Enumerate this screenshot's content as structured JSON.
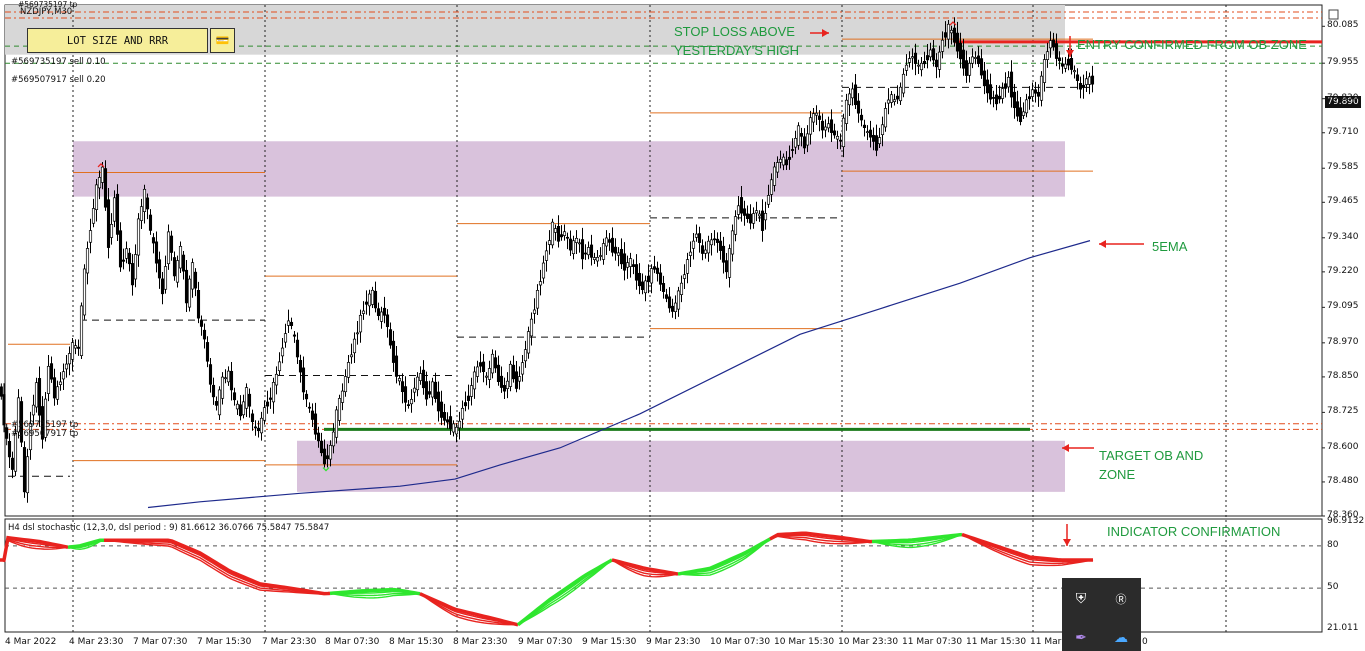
{
  "window": {
    "symbol_title": "NZDJPY,M30",
    "header_tickets": [
      "#569735197 tp",
      "#569507917 tp"
    ]
  },
  "panel": {
    "lot_button_label": "LOT SIZE AND RRR",
    "lot_icon": "card-icon"
  },
  "orders": [
    {
      "label": "#569735197 sell 0.10"
    },
    {
      "label": "#569507917 sell 0.20"
    }
  ],
  "lower_tickets": [
    "#569735197 tp",
    "#569507917 tp"
  ],
  "annotations": {
    "stop_loss": [
      "STOP LOSS ABOVE",
      "YESTERDAY'S HIGH"
    ],
    "entry": "ENTRY CONFIRMED FROM OB ZONE",
    "ema": "5EMA",
    "target": [
      "TARGET OB AND",
      "ZONE"
    ],
    "indicator": "INDICATOR CONFIRMATION"
  },
  "indicator_panel": {
    "caption": "H4 dsl stochastic (12,3,0, dsl period : 9) 81.6612 36.0766 75.5847 75.5847",
    "axis_labels": [
      "96.9132",
      "80",
      "50",
      "21.011"
    ]
  },
  "colors": {
    "bull": "#2ee62e",
    "bear": "#e8231f",
    "text_green": "#1f9a3e",
    "ob_zone": "#d9c2dc",
    "header_zone": "#d7d7d7",
    "ema": "#1e2a8c",
    "target_line": "#1a7a1a",
    "entry_line": "#e8231f"
  },
  "chart_data": {
    "type": "candlestick",
    "symbol": "NZDJPY",
    "timeframe": "M30",
    "current_price": "79.890",
    "y_ticks": [
      "80.085",
      "79.955",
      "79.830",
      "79.710",
      "79.585",
      "79.465",
      "79.340",
      "79.220",
      "79.095",
      "78.970",
      "78.850",
      "78.725",
      "78.600",
      "78.480",
      "78.360"
    ],
    "x_ticks": [
      "4 Mar 2022",
      "4 Mar 23:30",
      "7 Mar 07:30",
      "7 Mar 15:30",
      "7 Mar 23:30",
      "8 Mar 07:30",
      "8 Mar 15:30",
      "8 Mar 23:30",
      "9 Mar 07:30",
      "9 Mar 15:30",
      "9 Mar 23:30",
      "10 Mar 07:30",
      "10 Mar 15:30",
      "10 Mar 23:30",
      "11 Mar 07:30",
      "11 Mar 15:30",
      "11 Mar",
      "0"
    ],
    "ylim": [
      78.36,
      80.16
    ],
    "levels": {
      "entry": 80.03,
      "target": 78.665,
      "order_1": 80.015,
      "order_2": 79.955,
      "tp_1": 78.685,
      "tp_2": 78.665
    },
    "zones": [
      {
        "name": "top",
        "from": 79.985,
        "to": 80.16
      },
      {
        "name": "ob_upper",
        "from": 79.485,
        "to": 79.68
      },
      {
        "name": "ob_target",
        "from": 78.445,
        "to": 78.625
      }
    ],
    "path": [
      [
        0,
        78.84
      ],
      [
        8,
        78.62
      ],
      [
        14,
        78.52
      ],
      [
        20,
        78.78
      ],
      [
        26,
        78.44
      ],
      [
        32,
        78.7
      ],
      [
        38,
        78.82
      ],
      [
        44,
        78.64
      ],
      [
        50,
        78.9
      ],
      [
        56,
        78.78
      ],
      [
        62,
        78.84
      ],
      [
        68,
        78.9
      ],
      [
        74,
        78.96
      ],
      [
        80,
        78.95
      ],
      [
        86,
        79.22
      ],
      [
        92,
        79.38
      ],
      [
        98,
        79.52
      ],
      [
        104,
        79.58
      ],
      [
        110,
        79.32
      ],
      [
        116,
        79.48
      ],
      [
        122,
        79.24
      ],
      [
        128,
        79.3
      ],
      [
        134,
        79.18
      ],
      [
        140,
        79.4
      ],
      [
        146,
        79.5
      ],
      [
        152,
        79.36
      ],
      [
        158,
        79.26
      ],
      [
        164,
        79.14
      ],
      [
        170,
        79.36
      ],
      [
        176,
        79.2
      ],
      [
        182,
        79.3
      ],
      [
        188,
        79.12
      ],
      [
        194,
        79.24
      ],
      [
        200,
        79.06
      ],
      [
        206,
        78.98
      ],
      [
        212,
        78.82
      ],
      [
        218,
        78.74
      ],
      [
        224,
        78.84
      ],
      [
        230,
        78.86
      ],
      [
        236,
        78.76
      ],
      [
        242,
        78.72
      ],
      [
        248,
        78.8
      ],
      [
        254,
        78.68
      ],
      [
        260,
        78.66
      ],
      [
        266,
        78.74
      ],
      [
        272,
        78.78
      ],
      [
        278,
        78.86
      ],
      [
        284,
        78.96
      ],
      [
        290,
        79.06
      ],
      [
        296,
        78.98
      ],
      [
        302,
        78.86
      ],
      [
        308,
        78.76
      ],
      [
        314,
        78.7
      ],
      [
        320,
        78.62
      ],
      [
        326,
        78.55
      ],
      [
        332,
        78.6
      ],
      [
        338,
        78.72
      ],
      [
        344,
        78.8
      ],
      [
        350,
        78.9
      ],
      [
        356,
        78.98
      ],
      [
        362,
        79.06
      ],
      [
        368,
        79.12
      ],
      [
        374,
        79.14
      ],
      [
        380,
        79.06
      ],
      [
        386,
        79.08
      ],
      [
        392,
        78.96
      ],
      [
        398,
        78.86
      ],
      [
        404,
        78.8
      ],
      [
        410,
        78.74
      ],
      [
        416,
        78.82
      ],
      [
        422,
        78.86
      ],
      [
        428,
        78.78
      ],
      [
        434,
        78.82
      ],
      [
        440,
        78.74
      ],
      [
        446,
        78.7
      ],
      [
        452,
        78.68
      ],
      [
        458,
        78.66
      ],
      [
        464,
        78.74
      ],
      [
        470,
        78.78
      ],
      [
        476,
        78.86
      ],
      [
        482,
        78.9
      ],
      [
        488,
        78.84
      ],
      [
        494,
        78.92
      ],
      [
        500,
        78.84
      ],
      [
        506,
        78.8
      ],
      [
        512,
        78.88
      ],
      [
        518,
        78.82
      ],
      [
        524,
        78.9
      ],
      [
        530,
        79.0
      ],
      [
        536,
        79.1
      ],
      [
        542,
        79.2
      ],
      [
        548,
        79.3
      ],
      [
        554,
        79.38
      ],
      [
        560,
        79.34
      ],
      [
        566,
        79.36
      ],
      [
        572,
        79.3
      ],
      [
        578,
        79.34
      ],
      [
        584,
        79.28
      ],
      [
        590,
        79.3
      ],
      [
        596,
        79.26
      ],
      [
        602,
        79.28
      ],
      [
        608,
        79.34
      ],
      [
        614,
        79.3
      ],
      [
        620,
        79.28
      ],
      [
        626,
        79.24
      ],
      [
        632,
        79.26
      ],
      [
        638,
        79.2
      ],
      [
        644,
        79.16
      ],
      [
        650,
        79.2
      ],
      [
        656,
        79.24
      ],
      [
        662,
        79.18
      ],
      [
        668,
        79.12
      ],
      [
        674,
        79.08
      ],
      [
        680,
        79.14
      ],
      [
        686,
        79.22
      ],
      [
        692,
        79.3
      ],
      [
        698,
        79.36
      ],
      [
        704,
        79.28
      ],
      [
        710,
        79.32
      ],
      [
        716,
        79.34
      ],
      [
        722,
        79.3
      ],
      [
        728,
        79.22
      ],
      [
        734,
        79.36
      ],
      [
        740,
        79.46
      ],
      [
        746,
        79.42
      ],
      [
        752,
        79.4
      ],
      [
        758,
        79.44
      ],
      [
        764,
        79.38
      ],
      [
        770,
        79.5
      ],
      [
        776,
        79.58
      ],
      [
        782,
        79.62
      ],
      [
        788,
        79.6
      ],
      [
        794,
        79.66
      ],
      [
        800,
        79.72
      ],
      [
        806,
        79.66
      ],
      [
        812,
        79.76
      ],
      [
        818,
        79.78
      ],
      [
        824,
        79.72
      ],
      [
        830,
        79.74
      ],
      [
        836,
        79.7
      ],
      [
        842,
        79.68
      ],
      [
        848,
        79.82
      ],
      [
        854,
        79.86
      ],
      [
        860,
        79.78
      ],
      [
        866,
        79.72
      ],
      [
        872,
        79.7
      ],
      [
        878,
        79.66
      ],
      [
        884,
        79.74
      ],
      [
        890,
        79.84
      ],
      [
        896,
        79.82
      ],
      [
        902,
        79.86
      ],
      [
        908,
        79.96
      ],
      [
        914,
        79.98
      ],
      [
        920,
        79.94
      ],
      [
        926,
        79.96
      ],
      [
        932,
        80.0
      ],
      [
        938,
        79.94
      ],
      [
        944,
        80.04
      ],
      [
        950,
        80.08
      ],
      [
        956,
        80.04
      ],
      [
        962,
        79.98
      ],
      [
        968,
        79.92
      ],
      [
        974,
        79.98
      ],
      [
        980,
        79.96
      ],
      [
        986,
        79.88
      ],
      [
        992,
        79.84
      ],
      [
        998,
        79.82
      ],
      [
        1004,
        79.86
      ],
      [
        1010,
        79.9
      ],
      [
        1016,
        79.8
      ],
      [
        1022,
        79.76
      ],
      [
        1028,
        79.82
      ],
      [
        1034,
        79.86
      ],
      [
        1040,
        79.84
      ],
      [
        1046,
        79.96
      ],
      [
        1052,
        80.04
      ],
      [
        1058,
        79.98
      ],
      [
        1064,
        79.94
      ],
      [
        1070,
        79.96
      ],
      [
        1076,
        79.92
      ],
      [
        1082,
        79.86
      ],
      [
        1088,
        79.9
      ],
      [
        1094,
        79.89
      ]
    ],
    "ema": [
      [
        148,
        78.39
      ],
      [
        200,
        78.41
      ],
      [
        300,
        78.44
      ],
      [
        400,
        78.465
      ],
      [
        455,
        78.49
      ],
      [
        500,
        78.54
      ],
      [
        560,
        78.6
      ],
      [
        640,
        78.72
      ],
      [
        720,
        78.86
      ],
      [
        800,
        79.0
      ],
      [
        880,
        79.09
      ],
      [
        960,
        79.18
      ],
      [
        1030,
        79.27
      ],
      [
        1090,
        79.33
      ]
    ],
    "session_lines": [
      {
        "x0": 8,
        "x1": 70,
        "y": 78.965,
        "style": "solid"
      },
      {
        "x0": 8,
        "x1": 70,
        "y": 78.5,
        "style": "dash"
      },
      {
        "x0": 73,
        "x1": 265,
        "y": 79.57,
        "style": "solid"
      },
      {
        "x0": 73,
        "x1": 265,
        "y": 78.555,
        "style": "solid"
      },
      {
        "x0": 80,
        "x1": 265,
        "y": 79.05,
        "style": "dash"
      },
      {
        "x0": 265,
        "x1": 457,
        "y": 79.205,
        "style": "solid"
      },
      {
        "x0": 265,
        "x1": 457,
        "y": 78.54,
        "style": "solid"
      },
      {
        "x0": 265,
        "x1": 457,
        "y": 78.855,
        "style": "dash"
      },
      {
        "x0": 457,
        "x1": 650,
        "y": 79.39,
        "style": "solid"
      },
      {
        "x0": 457,
        "x1": 650,
        "y": 78.99,
        "style": "dash"
      },
      {
        "x0": 650,
        "x1": 842,
        "y": 79.78,
        "style": "solid"
      },
      {
        "x0": 650,
        "x1": 842,
        "y": 79.02,
        "style": "solid"
      },
      {
        "x0": 650,
        "x1": 842,
        "y": 79.41,
        "style": "dash"
      },
      {
        "x0": 842,
        "x1": 1093,
        "y": 80.04,
        "style": "solid"
      },
      {
        "x0": 842,
        "x1": 1093,
        "y": 79.575,
        "style": "solid"
      },
      {
        "x0": 842,
        "x1": 1093,
        "y": 79.87,
        "style": "dash"
      }
    ],
    "stochastic": {
      "ylim": [
        21.011,
        96.9132
      ],
      "main": [
        [
          5,
          86
        ],
        [
          40,
          83
        ],
        [
          68,
          79
        ],
        [
          80,
          80
        ],
        [
          100,
          84
        ],
        [
          130,
          84
        ],
        [
          170,
          84
        ],
        [
          200,
          75
        ],
        [
          230,
          62
        ],
        [
          260,
          53
        ],
        [
          290,
          50
        ],
        [
          325,
          46
        ],
        [
          360,
          48
        ],
        [
          395,
          49
        ],
        [
          420,
          46
        ],
        [
          455,
          35
        ],
        [
          490,
          29
        ],
        [
          518,
          24
        ],
        [
          550,
          42
        ],
        [
          585,
          59
        ],
        [
          612,
          70
        ],
        [
          645,
          64
        ],
        [
          678,
          60
        ],
        [
          710,
          64
        ],
        [
          745,
          75
        ],
        [
          778,
          88
        ],
        [
          805,
          89
        ],
        [
          840,
          86
        ],
        [
          870,
          83
        ],
        [
          910,
          84
        ],
        [
          962,
          88
        ],
        [
          1000,
          79
        ],
        [
          1030,
          72
        ],
        [
          1060,
          70
        ],
        [
          1093,
          70
        ]
      ],
      "colors": [
        [
          0,
          68,
          "bear"
        ],
        [
          68,
          104,
          "bull"
        ],
        [
          104,
          330,
          "bear"
        ],
        [
          330,
          420,
          "bull"
        ],
        [
          420,
          518,
          "bear"
        ],
        [
          518,
          612,
          "bull"
        ],
        [
          612,
          678,
          "bear"
        ],
        [
          678,
          770,
          "bull"
        ],
        [
          770,
          872,
          "bear"
        ],
        [
          872,
          962,
          "bull"
        ],
        [
          962,
          1093,
          "bear"
        ]
      ]
    }
  }
}
